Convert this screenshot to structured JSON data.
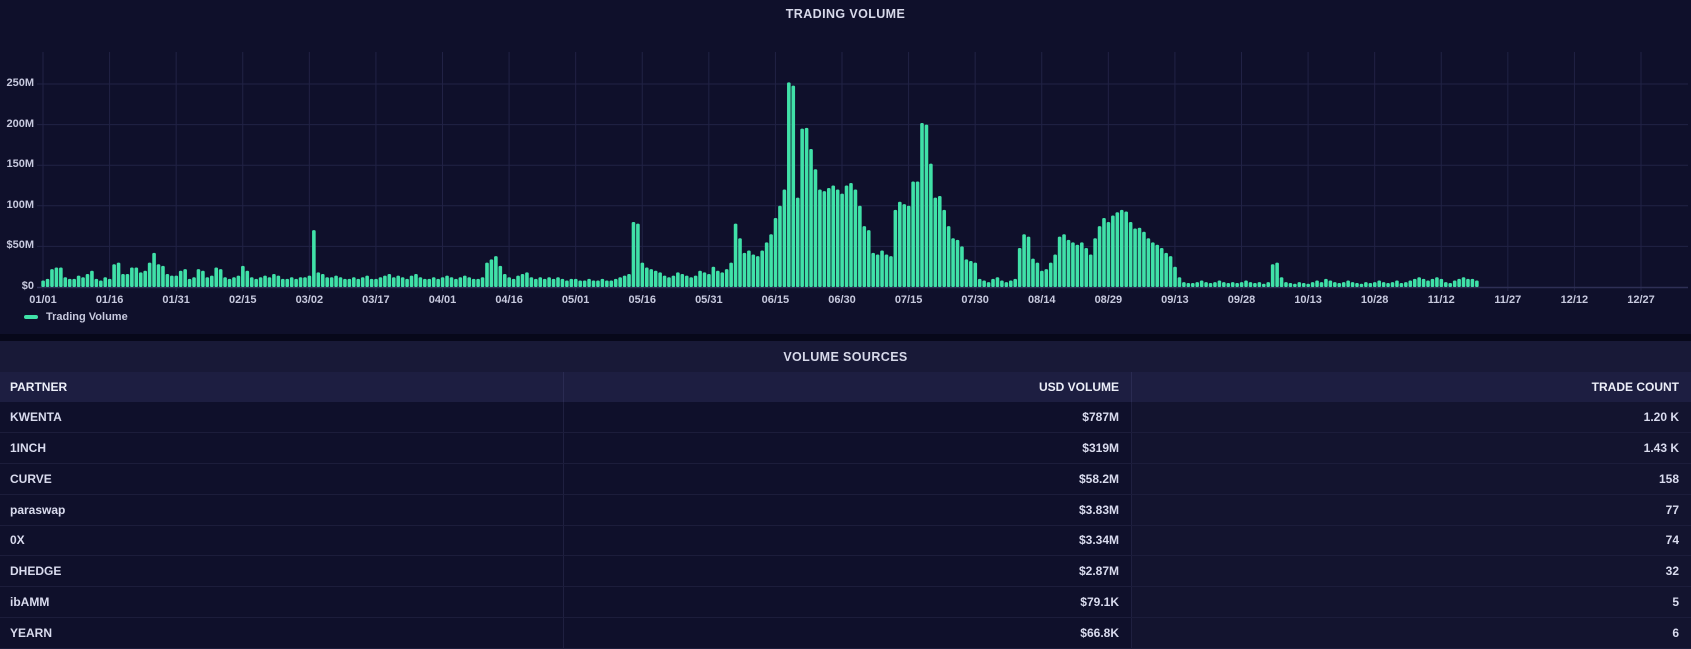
{
  "colors": {
    "accent_green": "#40e1a8",
    "background": "#0c0d22",
    "chart_background": "#0f102b",
    "grid": "#212245",
    "axis_text": "#c7c9de",
    "table_header_bg": "#1d1e41",
    "row_bg": "#0f102b"
  },
  "chart": {
    "title": "TRADING VOLUME",
    "legend_label": "Trading Volume"
  },
  "chart_data": {
    "type": "bar",
    "title": "TRADING VOLUME",
    "series_name": "Trading Volume",
    "interval": "daily",
    "x_start": "01/01",
    "x_end_of_data": "11/20",
    "ylim_musd": [
      0,
      250
    ],
    "grid": true,
    "legend_position": "bottom-left",
    "y_axis": [
      {
        "label": "$0",
        "value": 0
      },
      {
        "label": "$50M",
        "value": 50
      },
      {
        "label": "100M",
        "value": 100
      },
      {
        "label": "150M",
        "value": 150
      },
      {
        "label": "200M",
        "value": 200
      },
      {
        "label": "250M",
        "value": 250
      }
    ],
    "x_tick_labels": [
      "01/01",
      "01/16",
      "01/31",
      "02/15",
      "03/02",
      "03/17",
      "04/01",
      "04/16",
      "05/01",
      "05/16",
      "05/31",
      "06/15",
      "06/30",
      "07/15",
      "07/30",
      "08/14",
      "08/29",
      "09/13",
      "09/28",
      "10/13",
      "10/28",
      "11/12",
      "11/27",
      "12/12",
      "12/27"
    ],
    "values_musd": [
      8,
      10,
      22,
      24,
      24,
      12,
      10,
      10,
      14,
      12,
      16,
      20,
      10,
      8,
      12,
      10,
      28,
      30,
      16,
      16,
      24,
      24,
      18,
      20,
      30,
      42,
      28,
      26,
      16,
      14,
      14,
      20,
      22,
      10,
      12,
      22,
      20,
      12,
      14,
      24,
      22,
      12,
      10,
      12,
      14,
      26,
      20,
      12,
      10,
      12,
      14,
      12,
      16,
      14,
      10,
      10,
      12,
      10,
      12,
      12,
      14,
      70,
      18,
      16,
      12,
      12,
      14,
      12,
      10,
      10,
      12,
      10,
      12,
      14,
      10,
      10,
      12,
      14,
      16,
      12,
      14,
      12,
      10,
      14,
      16,
      12,
      10,
      10,
      12,
      10,
      12,
      14,
      12,
      10,
      12,
      14,
      12,
      10,
      10,
      12,
      30,
      34,
      38,
      26,
      16,
      12,
      10,
      14,
      16,
      18,
      12,
      10,
      12,
      10,
      12,
      10,
      12,
      10,
      8,
      10,
      10,
      8,
      8,
      10,
      8,
      8,
      10,
      8,
      8,
      10,
      12,
      14,
      16,
      80,
      78,
      30,
      24,
      22,
      20,
      18,
      14,
      12,
      14,
      18,
      16,
      14,
      12,
      14,
      20,
      18,
      16,
      25,
      20,
      18,
      22,
      30,
      78,
      60,
      42,
      45,
      40,
      38,
      45,
      55,
      65,
      85,
      100,
      120,
      252,
      248,
      110,
      195,
      196,
      170,
      145,
      120,
      118,
      122,
      125,
      120,
      115,
      125,
      128,
      120,
      100,
      75,
      70,
      42,
      40,
      45,
      40,
      38,
      95,
      105,
      102,
      100,
      130,
      130,
      202,
      200,
      152,
      110,
      112,
      95,
      75,
      60,
      58,
      50,
      34,
      32,
      30,
      10,
      8,
      6,
      10,
      12,
      8,
      6,
      8,
      10,
      48,
      65,
      62,
      35,
      30,
      20,
      22,
      30,
      40,
      62,
      65,
      58,
      55,
      52,
      55,
      48,
      40,
      60,
      75,
      85,
      80,
      88,
      92,
      95,
      93,
      80,
      72,
      73,
      68,
      60,
      55,
      52,
      48,
      42,
      38,
      25,
      12,
      6,
      5,
      5,
      6,
      8,
      6,
      5,
      6,
      8,
      6,
      5,
      6,
      5,
      6,
      8,
      6,
      5,
      6,
      4,
      6,
      28,
      30,
      12,
      6,
      5,
      4,
      6,
      5,
      4,
      6,
      8,
      6,
      10,
      8,
      6,
      5,
      6,
      8,
      6,
      5,
      4,
      6,
      5,
      6,
      8,
      6,
      5,
      6,
      8,
      5,
      6,
      8,
      10,
      12,
      10,
      8,
      10,
      12,
      10,
      6,
      5,
      8,
      10,
      12,
      10,
      10,
      8
    ]
  },
  "table": {
    "title": "VOLUME SOURCES",
    "columns": [
      "PARTNER",
      "USD VOLUME",
      "TRADE COUNT"
    ],
    "rows": [
      {
        "partner": "KWENTA",
        "usd_volume": "$787M",
        "trade_count": "1.20 K"
      },
      {
        "partner": "1INCH",
        "usd_volume": "$319M",
        "trade_count": "1.43 K"
      },
      {
        "partner": "CURVE",
        "usd_volume": "$58.2M",
        "trade_count": "158"
      },
      {
        "partner": "paraswap",
        "usd_volume": "$3.83M",
        "trade_count": "77"
      },
      {
        "partner": "0X",
        "usd_volume": "$3.34M",
        "trade_count": "74"
      },
      {
        "partner": "DHEDGE",
        "usd_volume": "$2.87M",
        "trade_count": "32"
      },
      {
        "partner": "ibAMM",
        "usd_volume": "$79.1K",
        "trade_count": "5"
      },
      {
        "partner": "YEARN",
        "usd_volume": "$66.8K",
        "trade_count": "6"
      }
    ]
  }
}
